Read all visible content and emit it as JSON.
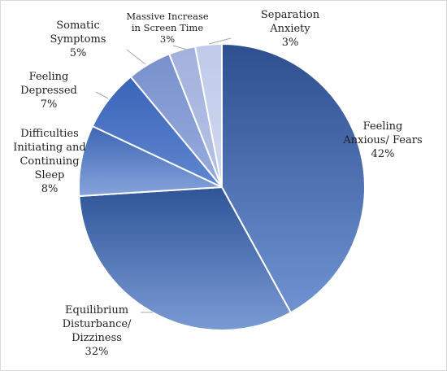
{
  "chart_data": {
    "type": "pie",
    "title": "",
    "start_angle_deg": 0,
    "direction": "clockwise",
    "slices": [
      {
        "label_lines": [
          "Feeling",
          "Anxious/ Fears"
        ],
        "value_label": "42%",
        "value": 42,
        "color": "#5579b8"
      },
      {
        "label_lines": [
          "Equilibrium",
          "Disturbance/",
          "Dizziness"
        ],
        "value_label": "32%",
        "value": 32,
        "color": "#5a7fc4"
      },
      {
        "label_lines": [
          "Difficulties",
          "Initiating and",
          "Continuing",
          "Sleep"
        ],
        "value_label": "8%",
        "value": 8,
        "color": "#6f93d2"
      },
      {
        "label_lines": [
          "Feeling",
          "Depressed"
        ],
        "value_label": "7%",
        "value": 7,
        "color": "#4f7acb"
      },
      {
        "label_lines": [
          "Somatic",
          "Symptoms"
        ],
        "value_label": "5%",
        "value": 5,
        "color": "#8aa0d6"
      },
      {
        "label_lines": [
          "Massive Increase",
          "in Screen Time"
        ],
        "value_label": "3%",
        "value": 3,
        "color": "#a9b7df"
      },
      {
        "label_lines": [
          "Separation",
          "Anxiety"
        ],
        "value_label": "3%",
        "value": 3,
        "color": "#c6cfec"
      }
    ]
  }
}
